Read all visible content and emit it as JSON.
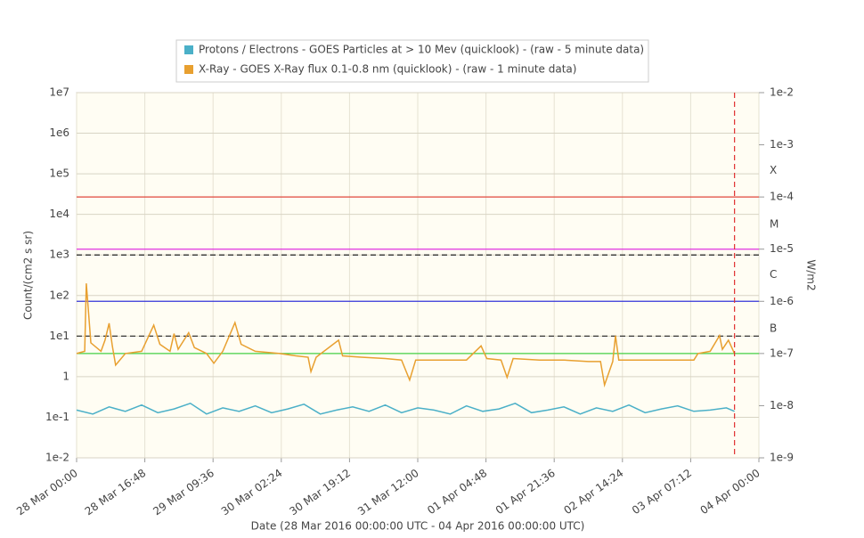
{
  "chart_data": {
    "type": "line",
    "legend": "top",
    "grid": true,
    "x_label": "Date (28 Mar 2016 00:00:00 UTC - 04 Apr 2016 00:00:00 UTC)",
    "y_label": "Count/(cm2 s sr)",
    "y2_label": "W/m2",
    "log_y": true,
    "log_y2": true,
    "xlim": [
      "28 Mar 00:00",
      "04 Apr 00:00"
    ],
    "xticks": [
      "28 Mar 00:00",
      "28 Mar 16:48",
      "29 Mar 09:36",
      "30 Mar 02:24",
      "30 Mar 19:12",
      "31 Mar 12:00",
      "01 Apr 04:48",
      "01 Apr 21:36",
      "02 Apr 14:24",
      "03 Apr 07:12",
      "04 Apr 00:00"
    ],
    "ylim": [
      0.01,
      10000000
    ],
    "yticks": [
      {
        "value": 0.01,
        "label": "1e-2"
      },
      {
        "value": 0.1,
        "label": "1e-1"
      },
      1,
      {
        "value": 10,
        "label": "1e1"
      },
      {
        "value": 100,
        "label": "1e2"
      },
      {
        "value": 1000,
        "label": "1e3"
      },
      {
        "value": 10000,
        "label": "1e4"
      },
      {
        "value": 100000,
        "label": "1e5"
      },
      {
        "value": 1000000,
        "label": "1e6"
      },
      {
        "value": 10000000,
        "label": "1e7"
      }
    ],
    "y2lim": [
      1e-09,
      0.01
    ],
    "y2ticks": [
      {
        "value": 1e-09,
        "label": "1e-9"
      },
      {
        "value": 1e-08,
        "label": "1e-8"
      },
      {
        "value": 1e-07,
        "label": "1e-7"
      },
      {
        "value": 1e-06,
        "label": "1e-6"
      },
      {
        "value": 1e-05,
        "label": "1e-5"
      },
      {
        "value": 0.0001,
        "label": "1e-4"
      },
      {
        "value": 0.001,
        "label": "1e-3"
      },
      {
        "value": 0.01,
        "label": "1e-2"
      }
    ],
    "flare_classes": [
      {
        "value": 3e-07,
        "label": "B"
      },
      {
        "value": 3.2e-06,
        "label": "C"
      },
      {
        "value": 3e-05,
        "label": "M"
      },
      {
        "value": 0.00032,
        "label": "X"
      }
    ],
    "thresholds": [
      {
        "value": 0.0001,
        "axis": "y2",
        "color": "#e0483c"
      },
      {
        "value": 1e-05,
        "axis": "y2",
        "color": "#e030e0"
      },
      {
        "value": 1e-06,
        "axis": "y2",
        "color": "#3434d8"
      },
      {
        "value": 1e-07,
        "axis": "y2",
        "color": "#44d044"
      },
      {
        "value": 1000,
        "axis": "y",
        "color": "#222222",
        "dashed": true
      },
      {
        "value": 10,
        "axis": "y",
        "color": "#222222",
        "dashed": true
      }
    ],
    "marker_x": "03 Apr 18:00",
    "marker_color": "#e03030",
    "series": [
      {
        "name": "Protons / Electrons - GOES Particles at > 10 Mev (quicklook) -  (raw - 5 minute data)",
        "color": "#4bb0c8",
        "axis": "y",
        "x": [
          "28 Mar 00:00",
          "28 Mar 04:00",
          "28 Mar 08:00",
          "28 Mar 12:00",
          "28 Mar 16:00",
          "28 Mar 20:00",
          "29 Mar 00:00",
          "29 Mar 04:00",
          "29 Mar 08:00",
          "29 Mar 12:00",
          "29 Mar 16:00",
          "29 Mar 20:00",
          "30 Mar 00:00",
          "30 Mar 04:00",
          "30 Mar 08:00",
          "30 Mar 12:00",
          "30 Mar 16:00",
          "30 Mar 20:00",
          "31 Mar 00:00",
          "31 Mar 04:00",
          "31 Mar 08:00",
          "31 Mar 12:00",
          "31 Mar 16:00",
          "31 Mar 20:00",
          "01 Apr 00:00",
          "01 Apr 04:00",
          "01 Apr 08:00",
          "01 Apr 12:00",
          "01 Apr 16:00",
          "01 Apr 20:00",
          "02 Apr 00:00",
          "02 Apr 04:00",
          "02 Apr 08:00",
          "02 Apr 12:00",
          "02 Apr 16:00",
          "02 Apr 20:00",
          "03 Apr 00:00",
          "03 Apr 04:00",
          "03 Apr 08:00",
          "03 Apr 12:00",
          "03 Apr 16:00",
          "03 Apr 18:00"
        ],
        "values": [
          0.15,
          0.12,
          0.18,
          0.14,
          0.2,
          0.13,
          0.16,
          0.22,
          0.12,
          0.17,
          0.14,
          0.19,
          0.13,
          0.16,
          0.21,
          0.12,
          0.15,
          0.18,
          0.14,
          0.2,
          0.13,
          0.17,
          0.15,
          0.12,
          0.19,
          0.14,
          0.16,
          0.22,
          0.13,
          0.15,
          0.18,
          0.12,
          0.17,
          0.14,
          0.2,
          0.13,
          0.16,
          0.19,
          0.14,
          0.15,
          0.17,
          0.14
        ]
      },
      {
        "name": "X-Ray - GOES X-Ray flux 0.1-0.8 nm (quicklook) -  (raw - 1 minute data)",
        "color": "#e8a030",
        "axis": "y2",
        "x": [
          "28 Mar 00:00",
          "28 Mar 02:00",
          "28 Mar 02:24",
          "28 Mar 03:30",
          "28 Mar 06:00",
          "28 Mar 07:00",
          "28 Mar 08:00",
          "28 Mar 08:48",
          "28 Mar 09:36",
          "28 Mar 12:00",
          "28 Mar 16:00",
          "28 Mar 19:00",
          "28 Mar 20:30",
          "28 Mar 23:00",
          "29 Mar 00:00",
          "29 Mar 01:00",
          "29 Mar 03:36",
          "29 Mar 05:00",
          "29 Mar 08:00",
          "29 Mar 09:48",
          "29 Mar 12:00",
          "29 Mar 15:00",
          "29 Mar 16:30",
          "29 Mar 20:00",
          "30 Mar 02:00",
          "30 Mar 06:00",
          "30 Mar 09:00",
          "30 Mar 09:42",
          "30 Mar 11:00",
          "30 Mar 16:30",
          "30 Mar 17:30",
          "30 Mar 22:00",
          "31 Mar 04:00",
          "31 Mar 08:00",
          "31 Mar 10:00",
          "31 Mar 11:30",
          "31 Mar 18:00",
          "01 Apr 00:00",
          "01 Apr 03:36",
          "01 Apr 05:00",
          "01 Apr 08:30",
          "01 Apr 10:00",
          "01 Apr 11:30",
          "01 Apr 18:00",
          "02 Apr 00:00",
          "02 Apr 06:00",
          "02 Apr 09:00",
          "02 Apr 10:00",
          "02 Apr 12:00",
          "02 Apr 12:42",
          "02 Apr 13:30",
          "02 Apr 20:00",
          "03 Apr 04:00",
          "03 Apr 08:00",
          "03 Apr 09:00",
          "03 Apr 12:00",
          "03 Apr 14:18",
          "03 Apr 15:00",
          "03 Apr 16:30",
          "03 Apr 18:00"
        ],
        "values": [
          1e-07,
          1.1e-07,
          2.2e-06,
          1.6e-07,
          1.1e-07,
          1.8e-07,
          3.8e-07,
          1.4e-07,
          6e-08,
          1e-07,
          1.1e-07,
          3.5e-07,
          1.5e-07,
          1.1e-07,
          2.4e-07,
          1.2e-07,
          2.5e-07,
          1.3e-07,
          1e-07,
          6.5e-08,
          1.1e-07,
          3.9e-07,
          1.5e-07,
          1.1e-07,
          1e-07,
          9e-08,
          8.5e-08,
          4.5e-08,
          8.5e-08,
          1.8e-07,
          9e-08,
          8.5e-08,
          8e-08,
          7.5e-08,
          3.1e-08,
          7.5e-08,
          7.5e-08,
          7.5e-08,
          1.4e-07,
          8e-08,
          7.5e-08,
          3.5e-08,
          8e-08,
          7.5e-08,
          7.5e-08,
          7e-08,
          7e-08,
          2.5e-08,
          7e-08,
          2.2e-07,
          7.5e-08,
          7.5e-08,
          7.5e-08,
          7.5e-08,
          1e-07,
          1.1e-07,
          2.2e-07,
          1.2e-07,
          1.8e-07,
          1e-07
        ]
      }
    ]
  }
}
